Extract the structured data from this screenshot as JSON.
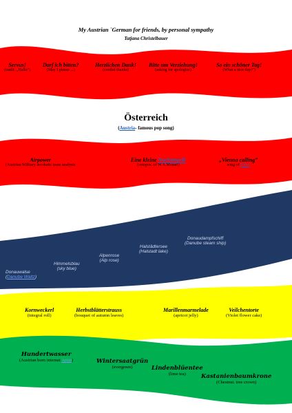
{
  "header": {
    "title": "My Austrian `German for friends, by personal sympathy",
    "author": "Tatjana Christelbauer"
  },
  "band1": [
    {
      "word": "Servus!",
      "translation": "(tradit. „Hallo”)"
    },
    {
      "word": "Darf ich bitten?",
      "translation": "(May I please ...)"
    },
    {
      "word": "Herzlichen Dank!",
      "translation": "(cordial thanks)"
    },
    {
      "word": "Bitte um Verziehung!",
      "translation": "(asking for apologize)"
    },
    {
      "word": "So ein schöner Tag!",
      "translation": "(What a nice day!”)"
    }
  ],
  "section": {
    "heading": "Österreich",
    "sub_prefix": "(",
    "sub_link": "Austria",
    "sub_suffix": "- famous pop song)"
  },
  "band2": {
    "airpower": {
      "word": "Airpower",
      "translation": "(Austrian Military aerobatic team analysis"
    },
    "nacht": {
      "word_prefix": "Eine kleine ",
      "word_link": "Nachtmusik",
      "translation": "(compos. of W.A.Mozart)"
    },
    "vienna": {
      "word": "„Vienna calling”",
      "translation_prefix": "song of ",
      "translation_link": "Falco"
    }
  },
  "band3": [
    {
      "word": "Donauwalse",
      "translation_link": "Danube Waltz"
    },
    {
      "word": "Himmelsblau",
      "translation": "(sky blue)"
    },
    {
      "word": "Alpenrose",
      "translation": "(Alp rose)"
    },
    {
      "word": "Halstädtersee",
      "translation": "(Halstadt lake)"
    },
    {
      "word": "Donaudampfschiff",
      "translation": "(Danube steam ship)"
    }
  ],
  "band4": [
    {
      "word": "Kornweckerl",
      "translation": "(integral roll)"
    },
    {
      "word": "Herbstblätterstrauss",
      "translation": "(bouquet of autumn leaves)"
    },
    {
      "word": "Marillenmarmelade",
      "translation": "(apricot jelly)"
    },
    {
      "word": "Veilchentorte",
      "translation": "(Violet flower cake)"
    }
  ],
  "band5": [
    {
      "word": "Hundertwasser",
      "translation_prefix": "(Austrian born internat.",
      "translation_link": "Artist",
      "translation_suffix": ")"
    },
    {
      "word": "Wintersaatgrün",
      "translation": "(evergreen)"
    },
    {
      "word": "Lindenblüentee",
      "translation": "(lime tea)"
    },
    {
      "word": "Kastanienbaumkrone",
      "translation": "(Chestnut. tree crown)"
    }
  ],
  "colors": {
    "red": "#ff0000",
    "navy": "#1f3864",
    "yellow": "#ffff00",
    "green": "#00b050",
    "link": "#1f5fbf"
  }
}
